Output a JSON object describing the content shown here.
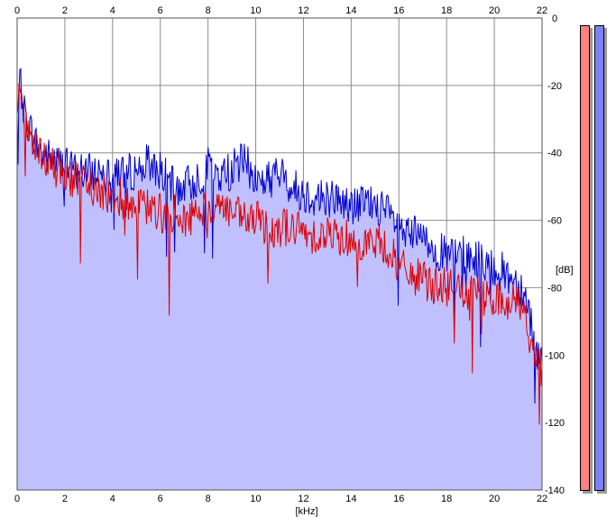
{
  "chart_data": {
    "type": "line",
    "xlabel": "[kHz]",
    "ylabel": "[dB]",
    "xlim": [
      0,
      22
    ],
    "ylim": [
      -140,
      0
    ],
    "x_ticks": [
      "0",
      "2",
      "4",
      "6",
      "8",
      "10",
      "12",
      "14",
      "16",
      "18",
      "20",
      "22"
    ],
    "y_ticks": [
      "0",
      "-20",
      "-40",
      "-60",
      "-80",
      "-100",
      "-120",
      "-140"
    ],
    "grid": true,
    "fill_color": "#c0c0ff",
    "series": [
      {
        "color": "#0000cc",
        "x": [
          0,
          0.1,
          0.2,
          0.3,
          0.5,
          0.7,
          1,
          1.5,
          2,
          2.5,
          3,
          3.5,
          4,
          4.5,
          5,
          5.5,
          6,
          6.5,
          7,
          7.5,
          8,
          8.5,
          9,
          9.5,
          10,
          10.5,
          11,
          11.5,
          12,
          12.5,
          13,
          13.5,
          14,
          14.5,
          15,
          15.5,
          16,
          16.5,
          17,
          17.5,
          18,
          18.5,
          19,
          19.5,
          20,
          20.5,
          21,
          21.3,
          21.5,
          21.7,
          22
        ],
        "y": [
          -30,
          -20,
          -22,
          -28,
          -32,
          -36,
          -40,
          -42,
          -44,
          -45,
          -46,
          -45,
          -44,
          -46,
          -45,
          -43,
          -45,
          -50,
          -50,
          -48,
          -44,
          -47,
          -45,
          -42,
          -48,
          -48,
          -46,
          -50,
          -52,
          -53,
          -53,
          -54,
          -56,
          -55,
          -55,
          -58,
          -62,
          -64,
          -66,
          -68,
          -71,
          -70,
          -71,
          -72,
          -74,
          -76,
          -78,
          -82,
          -88,
          -98,
          -102
        ]
      },
      {
        "color": "#dd0000",
        "x": [
          0,
          0.1,
          0.2,
          0.3,
          0.5,
          0.7,
          1,
          1.5,
          2,
          2.5,
          3,
          3.5,
          4,
          4.5,
          5,
          5.5,
          6,
          6.5,
          7,
          7.5,
          8,
          8.5,
          9,
          9.5,
          10,
          10.5,
          11,
          11.5,
          12,
          12.5,
          13,
          13.5,
          14,
          14.5,
          15,
          15.5,
          16,
          16.5,
          17,
          17.5,
          18,
          18.5,
          19,
          19.5,
          20,
          20.5,
          21,
          21.3,
          21.5,
          21.7,
          22
        ],
        "y": [
          -28,
          -24,
          -26,
          -30,
          -34,
          -38,
          -42,
          -44,
          -46,
          -48,
          -50,
          -52,
          -52,
          -54,
          -56,
          -56,
          -58,
          -58,
          -60,
          -58,
          -56,
          -55,
          -58,
          -60,
          -60,
          -62,
          -62,
          -62,
          -64,
          -64,
          -64,
          -65,
          -65,
          -66,
          -67,
          -68,
          -74,
          -76,
          -78,
          -79,
          -80,
          -81,
          -82,
          -83,
          -84,
          -84,
          -84,
          -88,
          -96,
          -100,
          -104
        ]
      }
    ]
  },
  "meters": {
    "left_color": "#ff8080",
    "right_color": "#8080ff"
  }
}
